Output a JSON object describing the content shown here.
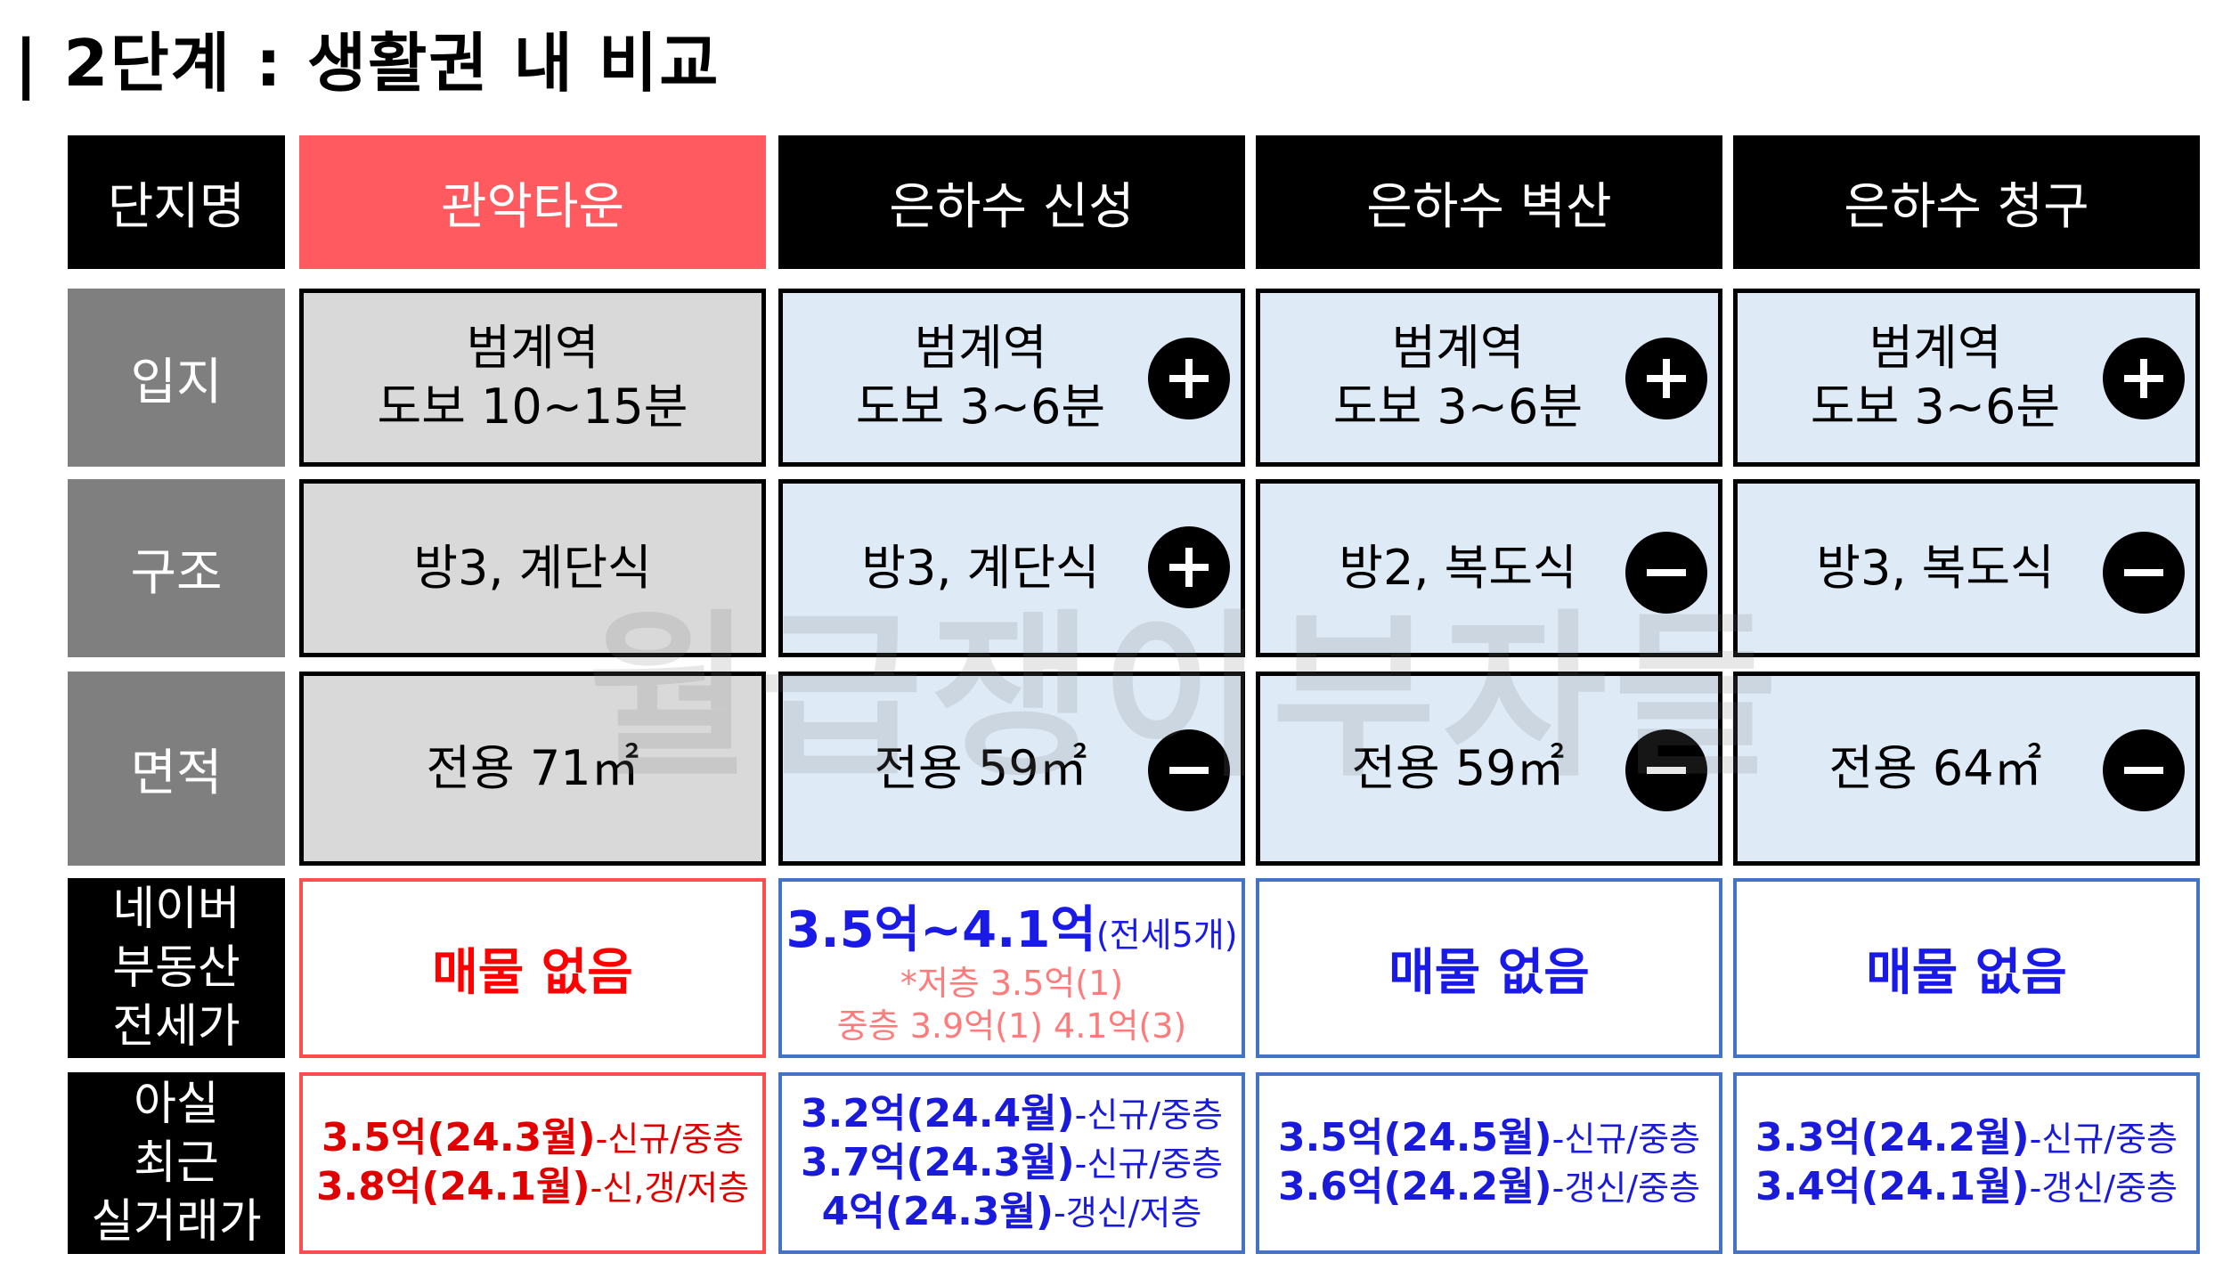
{
  "title": "| 2단계 : 생활권 내 비교",
  "watermark": "월급쟁이부자들",
  "headers": {
    "label": "단지명",
    "cols": [
      "관악타운",
      "은하수 신성",
      "은하수 벽산",
      "은하수 청구"
    ]
  },
  "rows": {
    "location": {
      "label": "입지",
      "values": [
        {
          "line1": "범계역",
          "line2": "도보 10~15분",
          "badge": ""
        },
        {
          "line1": "범계역",
          "line2": "도보 3~6분",
          "badge": "plus"
        },
        {
          "line1": "범계역",
          "line2": "도보 3~6분",
          "badge": "plus"
        },
        {
          "line1": "범계역",
          "line2": "도보 3~6분",
          "badge": "plus"
        }
      ]
    },
    "structure": {
      "label": "구조",
      "values": [
        {
          "text": "방3, 계단식",
          "badge": ""
        },
        {
          "text": "방3, 계단식",
          "badge": "plus"
        },
        {
          "text": "방2, 복도식",
          "badge": "minus"
        },
        {
          "text": "방3, 복도식",
          "badge": "minus"
        }
      ]
    },
    "area": {
      "label": "면적",
      "values": [
        {
          "text": "전용 71㎡",
          "badge": ""
        },
        {
          "text": "전용 59㎡",
          "badge": "minus"
        },
        {
          "text": "전용 59㎡",
          "badge": "minus"
        },
        {
          "text": "전용 64㎡",
          "badge": "minus"
        }
      ]
    },
    "naver": {
      "label_lines": [
        "네이버",
        "부동산",
        "전세가"
      ],
      "col0": "매물 없음",
      "col1": {
        "main": "3.5억~4.1억",
        "main_note": "(전세5개)",
        "sub1": "*저층 3.5억(1)",
        "sub2": "중층 3.9억(1) 4.1억(3)"
      },
      "col2": "매물 없음",
      "col3": "매물 없음"
    },
    "deals": {
      "label_lines": [
        "아실",
        "최근",
        "실거래가"
      ],
      "cols": [
        [
          {
            "price": "3.5억(24.3월)",
            "note": "-신규/중층"
          },
          {
            "price": "3.8억(24.1월)",
            "note": "-신,갱/저층"
          }
        ],
        [
          {
            "price": "3.2억(24.4월)",
            "note": "-신규/중층"
          },
          {
            "price": "3.7억(24.3월)",
            "note": "-신규/중층"
          },
          {
            "price": "4억(24.3월)",
            "note": "-갱신/저층"
          }
        ],
        [
          {
            "price": "3.5억(24.5월)",
            "note": "-신규/중층"
          },
          {
            "price": "3.6억(24.2월)",
            "note": "-갱신/중층"
          }
        ],
        [
          {
            "price": "3.3억(24.2월)",
            "note": "-신규/중층"
          },
          {
            "price": "3.4억(24.1월)",
            "note": "-갱신/중층"
          }
        ]
      ]
    }
  },
  "colors": {
    "highlight": "#ff5a5f",
    "target_fill": "#d9d9d9",
    "compare_fill": "#deebf7",
    "label_gray": "#7f7f7f",
    "red_text": "#e00000",
    "blue_text": "#1a1adb"
  },
  "icons": {
    "plus": "plus-circle-icon",
    "minus": "minus-circle-icon"
  }
}
